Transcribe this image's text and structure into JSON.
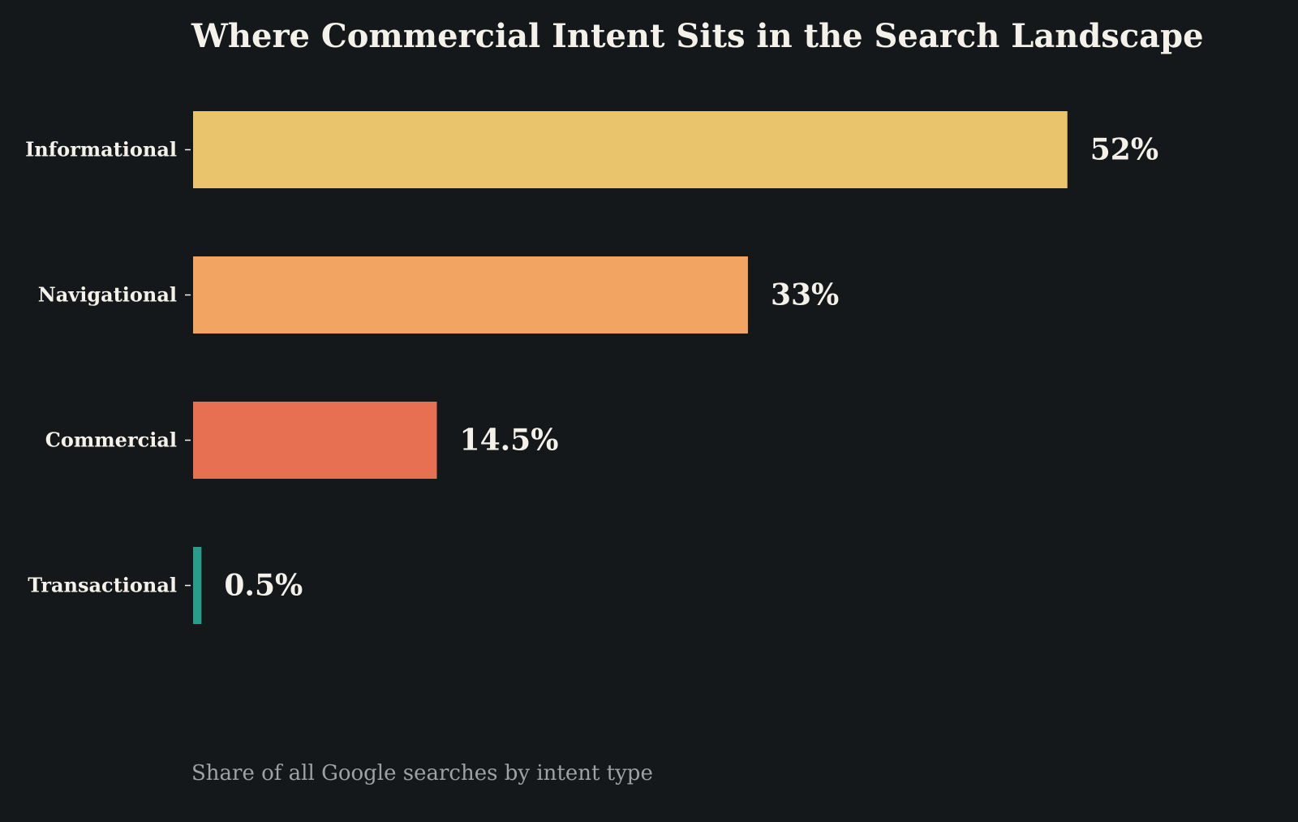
{
  "chart_data": {
    "type": "bar",
    "orientation": "horizontal",
    "title": "Where Commercial Intent Sits in the Search Landscape",
    "caption": "Share of all Google searches by intent type",
    "categories": [
      "Informational",
      "Navigational",
      "Commercial",
      "Transactional"
    ],
    "values": [
      52,
      33,
      14.5,
      0.5
    ],
    "value_labels": [
      "52%",
      "33%",
      "14.5%",
      "0.5%"
    ],
    "colors": [
      "#e9c46d",
      "#f2a463",
      "#e76f52",
      "#2a9d8a"
    ],
    "xlim": [
      0,
      62
    ],
    "grid": false,
    "legend": "none"
  }
}
